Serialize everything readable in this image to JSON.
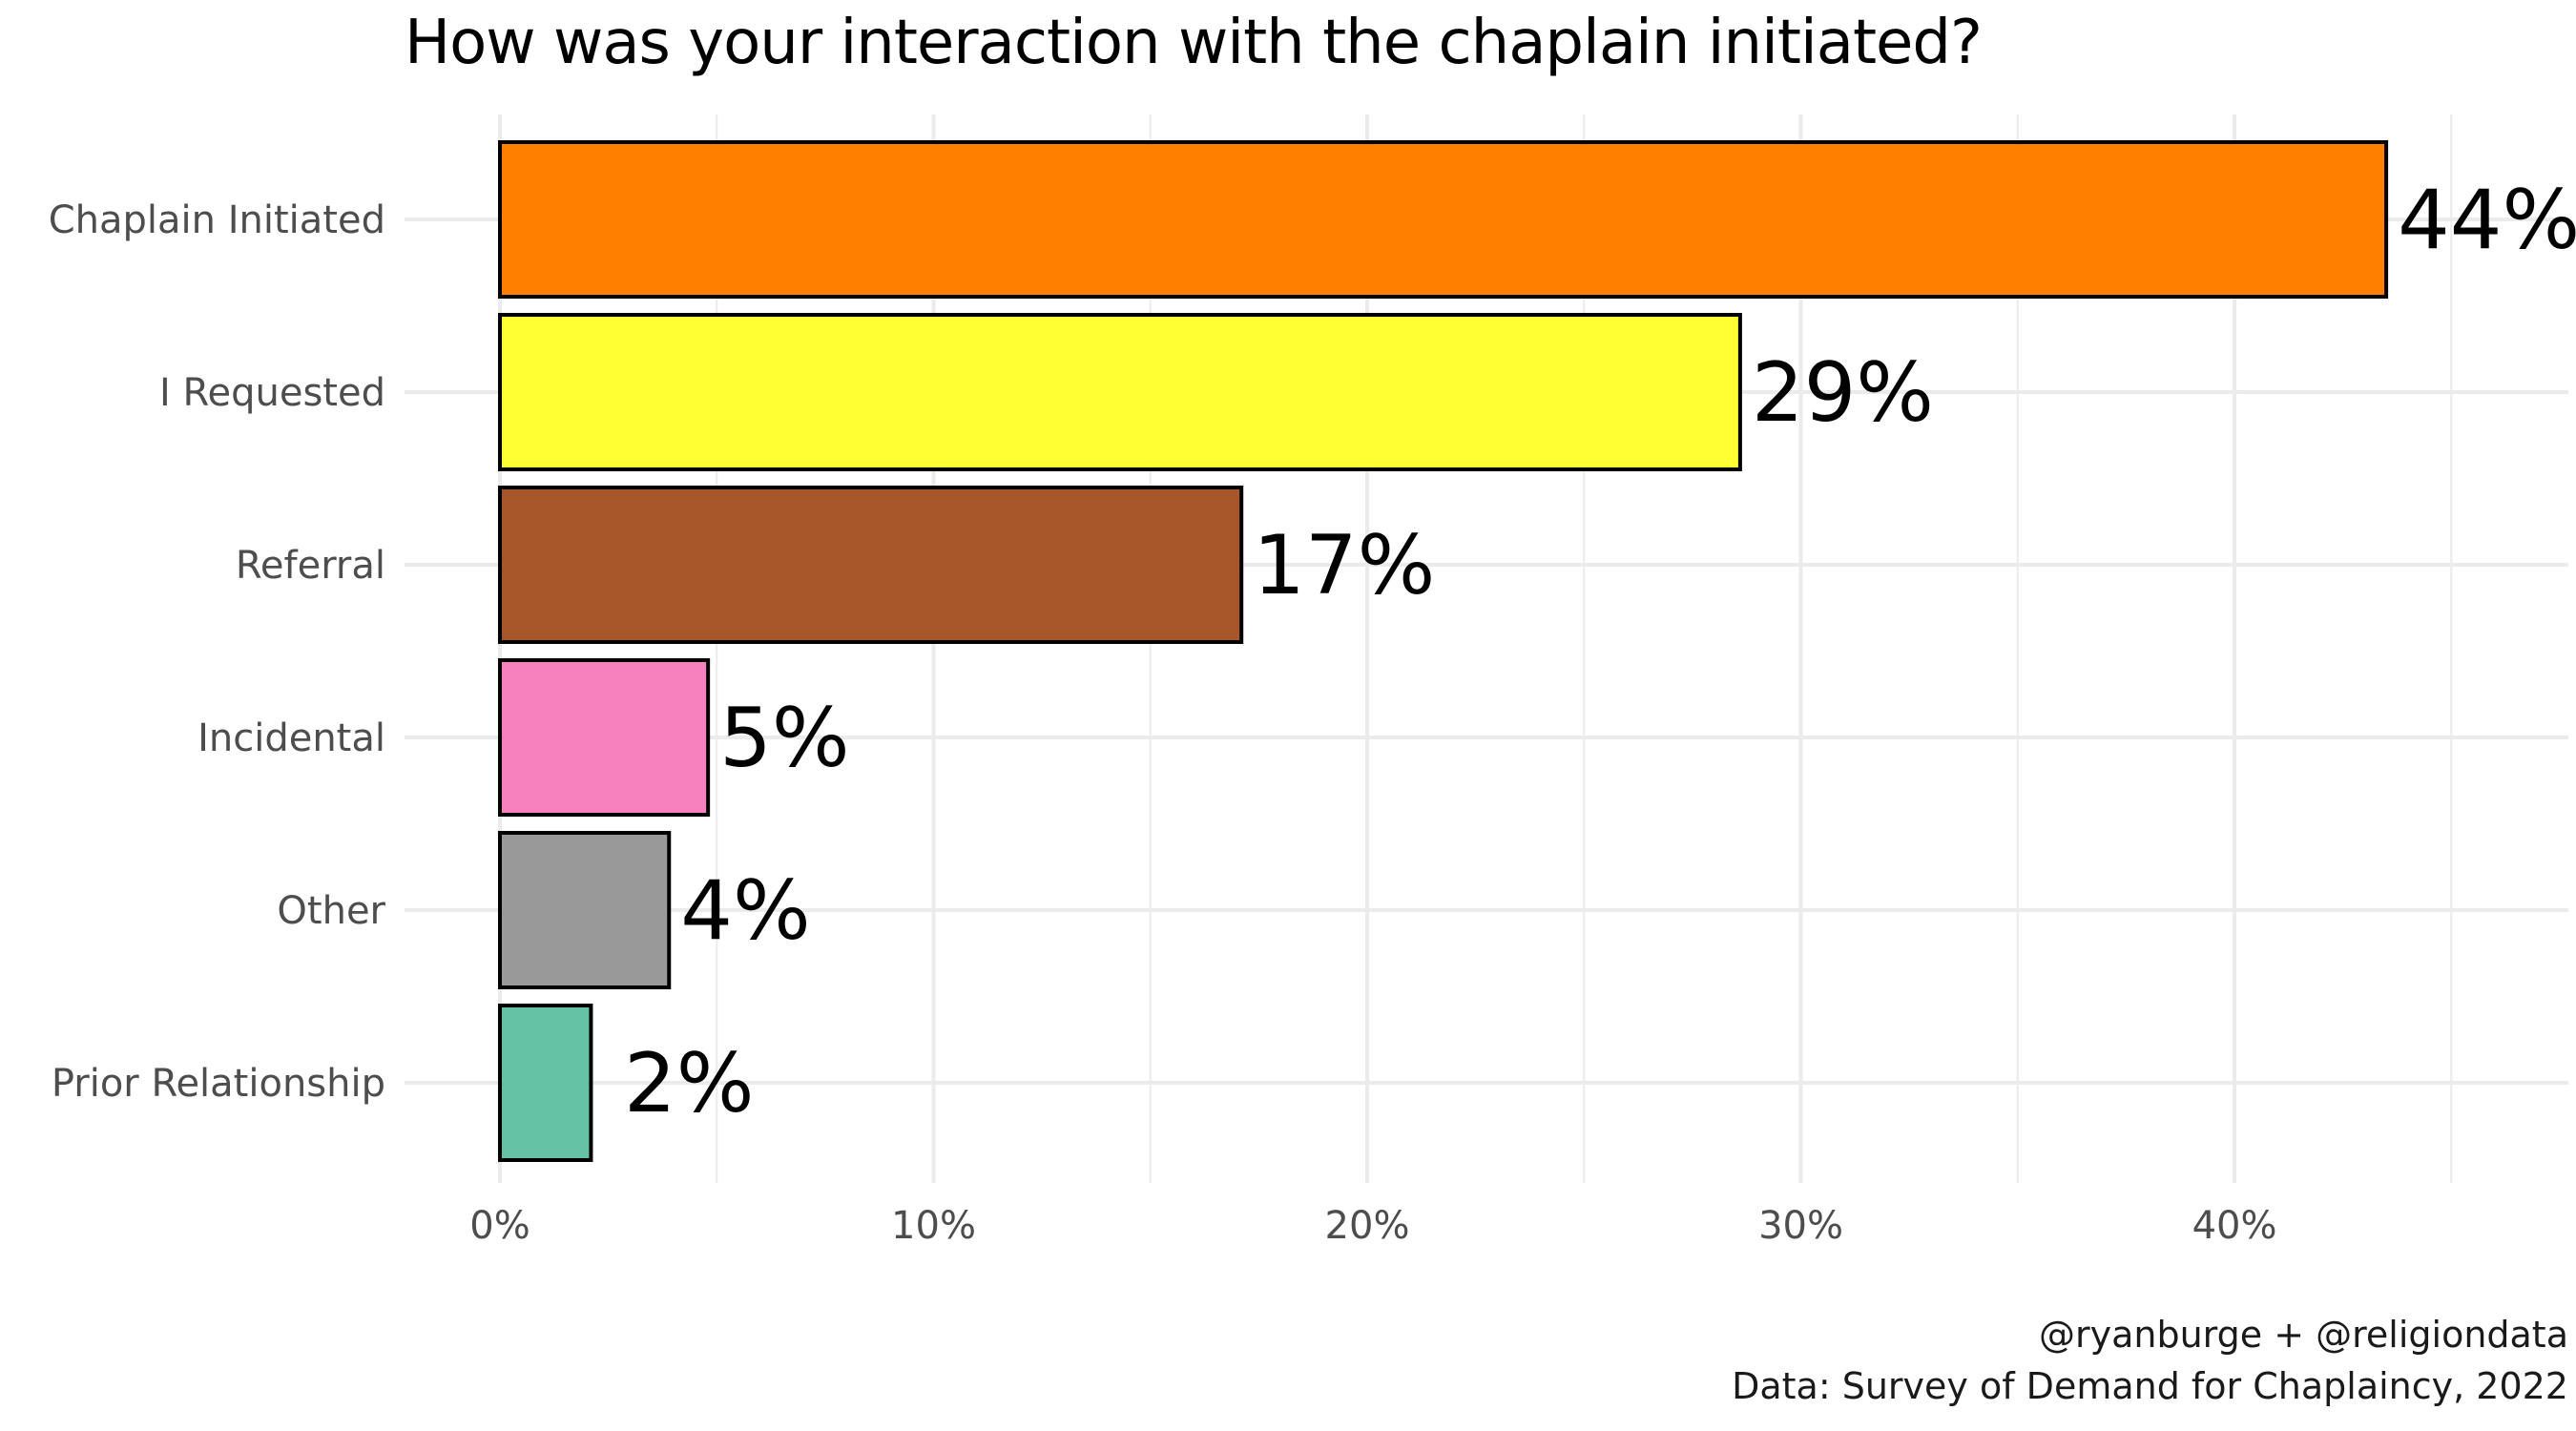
{
  "chart_data": {
    "type": "bar",
    "orientation": "horizontal",
    "title": "How was your interaction with the chaplain initiated?",
    "xlabel": "",
    "ylabel": "",
    "categories": [
      "Chaplain Initiated",
      "I Requested",
      "Referral",
      "Incidental",
      "Other",
      "Prior Relationship"
    ],
    "values": [
      43.5,
      28.6,
      17.1,
      4.8,
      3.9,
      2.1
    ],
    "data_labels": [
      "44%",
      "29%",
      "17%",
      "5%",
      "4%",
      "2%"
    ],
    "colors": [
      "#ff7f00",
      "#ffff33",
      "#a65628",
      "#f781bf",
      "#999999",
      "#66c2a5"
    ],
    "bar_outline_color": "#000000",
    "xlim": [
      -2.2,
      47.7
    ],
    "x_ticks": [
      0,
      10,
      20,
      30,
      40
    ],
    "x_tick_labels": [
      "0%",
      "10%",
      "20%",
      "30%",
      "40%"
    ],
    "x_minor_ticks": [
      5,
      15,
      25,
      35,
      45
    ],
    "grid": true,
    "legend": "none"
  },
  "caption": {
    "line1": "@ryanburge + @religiondata",
    "line2": "Data: Survey of Demand for Chaplaincy, 2022"
  }
}
